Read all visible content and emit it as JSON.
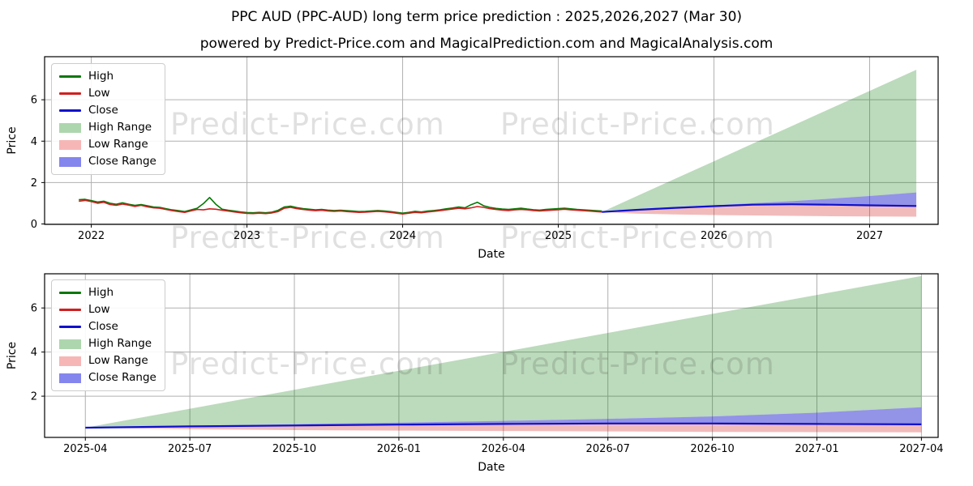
{
  "header": {
    "title": "PPC AUD (PPC-AUD) long term price prediction : 2025,2026,2027 (Mar 30)",
    "subtitle": "powered by Predict-Price.com and MagicalPrediction.com and MagicalAnalysis.com"
  },
  "watermark": {
    "text": "Predict-Price.com"
  },
  "colors": {
    "high": "#067806",
    "low": "#cf1f1f",
    "close": "#1010cc",
    "high_range": "#aed6ae",
    "low_range": "#f7b6b6",
    "close_range": "#8585ee",
    "grid": "#b0b0b0",
    "spine": "#000000",
    "text": "#000000"
  },
  "legend": {
    "items": [
      {
        "label": "High",
        "swatch": "line",
        "color": "high"
      },
      {
        "label": "Low",
        "swatch": "line",
        "color": "low"
      },
      {
        "label": "Close",
        "swatch": "line",
        "color": "close"
      },
      {
        "label": "High Range",
        "swatch": "patch",
        "color": "high_range"
      },
      {
        "label": "Low Range",
        "swatch": "patch",
        "color": "low_range"
      },
      {
        "label": "Close Range",
        "swatch": "patch",
        "color": "close_range"
      }
    ]
  },
  "chart_data": [
    {
      "type": "line",
      "name": "history-and-forecast",
      "xlabel": "Date",
      "ylabel": "Price",
      "xlim": [
        2021.7,
        2027.44
      ],
      "ylim": [
        -0.02,
        8.08
      ],
      "xticks": {
        "values": [
          2022,
          2023,
          2024,
          2025,
          2026,
          2027
        ],
        "labels": [
          "2022",
          "2023",
          "2024",
          "2025",
          "2026",
          "2027"
        ]
      },
      "yticks": {
        "values": [
          0,
          2,
          4,
          6
        ],
        "labels": [
          "0",
          "2",
          "4",
          "6"
        ]
      },
      "series": {
        "history": {
          "x": [
            2021.92,
            2021.96,
            2022.0,
            2022.04,
            2022.08,
            2022.12,
            2022.16,
            2022.2,
            2022.24,
            2022.28,
            2022.32,
            2022.36,
            2022.4,
            2022.44,
            2022.48,
            2022.52,
            2022.56,
            2022.6,
            2022.64,
            2022.68,
            2022.72,
            2022.76,
            2022.8,
            2022.84,
            2022.88,
            2022.92,
            2022.96,
            2023.0,
            2023.04,
            2023.08,
            2023.12,
            2023.16,
            2023.2,
            2023.24,
            2023.28,
            2023.32,
            2023.36,
            2023.4,
            2023.44,
            2023.48,
            2023.52,
            2023.56,
            2023.6,
            2023.64,
            2023.68,
            2023.72,
            2023.76,
            2023.8,
            2023.84,
            2023.88,
            2023.92,
            2023.96,
            2024.0,
            2024.04,
            2024.08,
            2024.12,
            2024.16,
            2024.2,
            2024.24,
            2024.28,
            2024.32,
            2024.36,
            2024.4,
            2024.44,
            2024.48,
            2024.52,
            2024.56,
            2024.6,
            2024.64,
            2024.68,
            2024.72,
            2024.76,
            2024.8,
            2024.84,
            2024.88,
            2024.92,
            2024.96,
            2025.0,
            2025.04,
            2025.08,
            2025.12,
            2025.16,
            2025.2,
            2025.24,
            2025.28
          ],
          "low": [
            1.1,
            1.14,
            1.08,
            1.0,
            1.05,
            0.94,
            0.9,
            0.96,
            0.91,
            0.85,
            0.9,
            0.83,
            0.78,
            0.76,
            0.7,
            0.64,
            0.6,
            0.56,
            0.63,
            0.7,
            0.68,
            0.73,
            0.71,
            0.66,
            0.62,
            0.58,
            0.54,
            0.51,
            0.5,
            0.52,
            0.5,
            0.53,
            0.6,
            0.76,
            0.8,
            0.74,
            0.7,
            0.67,
            0.64,
            0.66,
            0.63,
            0.61,
            0.63,
            0.6,
            0.58,
            0.56,
            0.57,
            0.59,
            0.61,
            0.59,
            0.56,
            0.52,
            0.48,
            0.52,
            0.56,
            0.54,
            0.58,
            0.61,
            0.64,
            0.68,
            0.72,
            0.76,
            0.73,
            0.78,
            0.84,
            0.8,
            0.74,
            0.7,
            0.67,
            0.65,
            0.68,
            0.7,
            0.68,
            0.65,
            0.63,
            0.65,
            0.67,
            0.69,
            0.71,
            0.68,
            0.66,
            0.64,
            0.62,
            0.6,
            0.58
          ],
          "high": [
            1.17,
            1.19,
            1.13,
            1.06,
            1.1,
            1.0,
            0.95,
            1.02,
            0.95,
            0.9,
            0.94,
            0.88,
            0.82,
            0.8,
            0.74,
            0.68,
            0.64,
            0.6,
            0.68,
            0.76,
            0.98,
            1.28,
            0.95,
            0.71,
            0.66,
            0.62,
            0.58,
            0.55,
            0.54,
            0.56,
            0.54,
            0.57,
            0.66,
            0.82,
            0.86,
            0.79,
            0.74,
            0.71,
            0.68,
            0.7,
            0.67,
            0.65,
            0.66,
            0.64,
            0.62,
            0.6,
            0.61,
            0.63,
            0.65,
            0.63,
            0.6,
            0.56,
            0.52,
            0.56,
            0.61,
            0.58,
            0.62,
            0.65,
            0.68,
            0.73,
            0.77,
            0.82,
            0.78,
            0.93,
            1.05,
            0.88,
            0.8,
            0.75,
            0.72,
            0.7,
            0.73,
            0.76,
            0.72,
            0.69,
            0.67,
            0.7,
            0.72,
            0.74,
            0.76,
            0.73,
            0.7,
            0.68,
            0.66,
            0.64,
            0.62
          ]
        },
        "forecast": {
          "x": [
            2025.28,
            2025.5,
            2025.75,
            2026.0,
            2026.25,
            2026.5,
            2026.75,
            2027.0,
            2027.3
          ],
          "close": [
            0.58,
            0.68,
            0.78,
            0.86,
            0.93,
            0.95,
            0.93,
            0.9,
            0.87
          ],
          "close_top": [
            0.58,
            0.72,
            0.82,
            0.9,
            1.0,
            1.1,
            1.22,
            1.35,
            1.52
          ],
          "low_bottom": [
            0.58,
            0.5,
            0.46,
            0.43,
            0.41,
            0.39,
            0.37,
            0.36,
            0.35
          ],
          "high_top": [
            0.58,
            1.33,
            2.18,
            3.03,
            3.88,
            4.73,
            5.58,
            6.43,
            7.45
          ]
        }
      }
    },
    {
      "type": "line",
      "name": "forecast-detail",
      "xlabel": "Date",
      "ylabel": "Price",
      "xlim": [
        -0.39,
        8.16
      ],
      "ylim": [
        0.13,
        7.55
      ],
      "xticks": {
        "values": [
          0,
          1,
          2,
          3,
          4,
          5,
          6,
          7,
          8
        ],
        "labels": [
          "2025-04",
          "2025-07",
          "2025-10",
          "2026-01",
          "2026-04",
          "2026-07",
          "2026-10",
          "2027-01",
          "2027-04"
        ]
      },
      "yticks": {
        "values": [
          2,
          4,
          6
        ],
        "labels": [
          "2",
          "4",
          "6"
        ]
      },
      "series": {
        "forecast": {
          "x": [
            0,
            1,
            2,
            3,
            4,
            5,
            6,
            7,
            8
          ],
          "close": [
            0.57,
            0.63,
            0.67,
            0.71,
            0.74,
            0.76,
            0.76,
            0.74,
            0.72
          ],
          "close_top": [
            0.57,
            0.66,
            0.73,
            0.8,
            0.88,
            0.97,
            1.08,
            1.25,
            1.5
          ],
          "low_bottom": [
            0.57,
            0.5,
            0.46,
            0.44,
            0.42,
            0.4,
            0.38,
            0.37,
            0.36
          ],
          "high_top": [
            0.57,
            1.43,
            2.29,
            3.15,
            4.01,
            4.87,
            5.73,
            6.59,
            7.45
          ]
        }
      }
    }
  ]
}
